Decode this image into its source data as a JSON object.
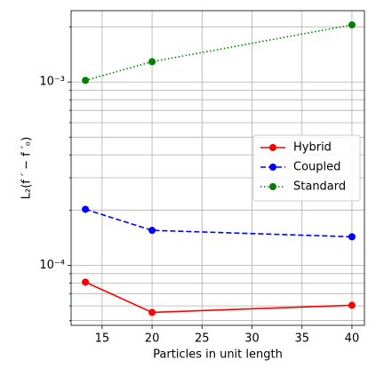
{
  "chart_data": {
    "type": "line",
    "xlabel": "Particles in unit length",
    "ylabel": "L₂(f ′ − f ′ₒ)",
    "x": [
      13.33,
      20,
      40
    ],
    "series": [
      {
        "name": "Hybrid",
        "color": "#ff0000",
        "linestyle": "solid",
        "values": [
          8.09e-05,
          5.53e-05,
          6.05e-05
        ]
      },
      {
        "name": "Coupled",
        "color": "#0000ff",
        "linestyle": "dashed",
        "values": [
          0.000202,
          0.000155,
          0.000143
        ]
      },
      {
        "name": "Standard",
        "color": "#008000",
        "linestyle": "dotted",
        "values": [
          0.00102,
          0.00129,
          0.00205
        ]
      }
    ],
    "xlim": [
      11.9,
      41.25
    ],
    "xticks": [
      15,
      20,
      25,
      30,
      35,
      40
    ],
    "ylim": [
      4.7e-05,
      0.00245
    ],
    "ylog": true,
    "yticks": [
      {
        "value": 0.0001,
        "label": "10⁻⁴"
      },
      {
        "value": 0.001,
        "label": "10⁻³"
      }
    ],
    "yticks_minor": [
      5e-05,
      6e-05,
      7e-05,
      8e-05,
      9e-05,
      0.0002,
      0.0003,
      0.0004,
      0.0005,
      0.0006,
      0.0007,
      0.0008,
      0.0009,
      0.002
    ],
    "grid": true,
    "legend": "center right"
  }
}
